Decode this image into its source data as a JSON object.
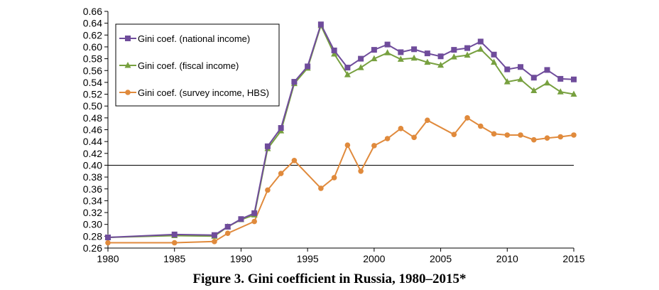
{
  "caption": "Figure 3. Gini coefficient in Russia, 1980–2015*",
  "chart_data": {
    "type": "line",
    "title": "",
    "xlabel": "",
    "ylabel": "",
    "xlim": [
      1980,
      2015
    ],
    "ylim": [
      0.26,
      0.66
    ],
    "x_ticks": [
      1980,
      1985,
      1990,
      1995,
      2000,
      2005,
      2010,
      2015
    ],
    "y_ticks": [
      0.26,
      0.28,
      0.3,
      0.32,
      0.34,
      0.36,
      0.38,
      0.4,
      0.42,
      0.44,
      0.46,
      0.48,
      0.5,
      0.52,
      0.54,
      0.56,
      0.58,
      0.6,
      0.62,
      0.64,
      0.66
    ],
    "y_tick_labels": [
      "0.26",
      "0.28",
      "0.30",
      "0.32",
      "0.34",
      "0.36",
      "0.38",
      "0.40",
      "0.42",
      "0.44",
      "0.46",
      "0.48",
      "0.50",
      "0.52",
      "0.54",
      "0.56",
      "0.58",
      "0.60",
      "0.62",
      "0.64",
      "0.66"
    ],
    "reference_line_y": 0.4,
    "grid": false,
    "legend_position": "top-left",
    "series": [
      {
        "name": "Gini coef. (national income)",
        "color": "#6f4c9b",
        "marker": "square",
        "x": [
          1980,
          1985,
          1988,
          1989,
          1990,
          1991,
          1992,
          1993,
          1994,
          1995,
          1996,
          1997,
          1998,
          1999,
          2000,
          2001,
          2002,
          2003,
          2004,
          2005,
          2006,
          2007,
          2008,
          2009,
          2010,
          2011,
          2012,
          2013,
          2014,
          2015
        ],
        "values": [
          0.278,
          0.283,
          0.282,
          0.296,
          0.309,
          0.319,
          0.432,
          0.463,
          0.541,
          0.567,
          0.638,
          0.594,
          0.565,
          0.58,
          0.595,
          0.604,
          0.591,
          0.596,
          0.589,
          0.584,
          0.595,
          0.598,
          0.609,
          0.587,
          0.562,
          0.566,
          0.548,
          0.561,
          0.546,
          0.545
        ]
      },
      {
        "name": "Gini coef. (fiscal income)",
        "color": "#77a03f",
        "marker": "triangle",
        "x": [
          1980,
          1985,
          1988,
          1989,
          1990,
          1991,
          1992,
          1993,
          1994,
          1995,
          1996,
          1997,
          1998,
          1999,
          2000,
          2001,
          2002,
          2003,
          2004,
          2005,
          2006,
          2007,
          2008,
          2009,
          2010,
          2011,
          2012,
          2013,
          2014,
          2015
        ],
        "values": [
          0.278,
          0.281,
          0.28,
          0.296,
          0.308,
          0.316,
          0.428,
          0.458,
          0.538,
          0.564,
          0.636,
          0.588,
          0.553,
          0.565,
          0.58,
          0.59,
          0.579,
          0.581,
          0.574,
          0.569,
          0.583,
          0.586,
          0.596,
          0.574,
          0.541,
          0.545,
          0.526,
          0.539,
          0.524,
          0.52
        ]
      },
      {
        "name": "Gini coef. (survey income, HBS)",
        "color": "#e08a3c",
        "marker": "circle",
        "x": [
          1980,
          1985,
          1988,
          1989,
          1991,
          1992,
          1993,
          1994,
          1996,
          1997,
          1998,
          1999,
          2000,
          2001,
          2002,
          2003,
          2004,
          2006,
          2007,
          2008,
          2009,
          2010,
          2011,
          2012,
          2013,
          2014,
          2015
        ],
        "values": [
          0.269,
          0.269,
          0.271,
          0.285,
          0.305,
          0.358,
          0.386,
          0.408,
          0.361,
          0.379,
          0.434,
          0.39,
          0.433,
          0.445,
          0.462,
          0.447,
          0.476,
          0.452,
          0.48,
          0.466,
          0.453,
          0.451,
          0.451,
          0.443,
          0.446,
          0.448,
          0.451
        ]
      }
    ]
  }
}
